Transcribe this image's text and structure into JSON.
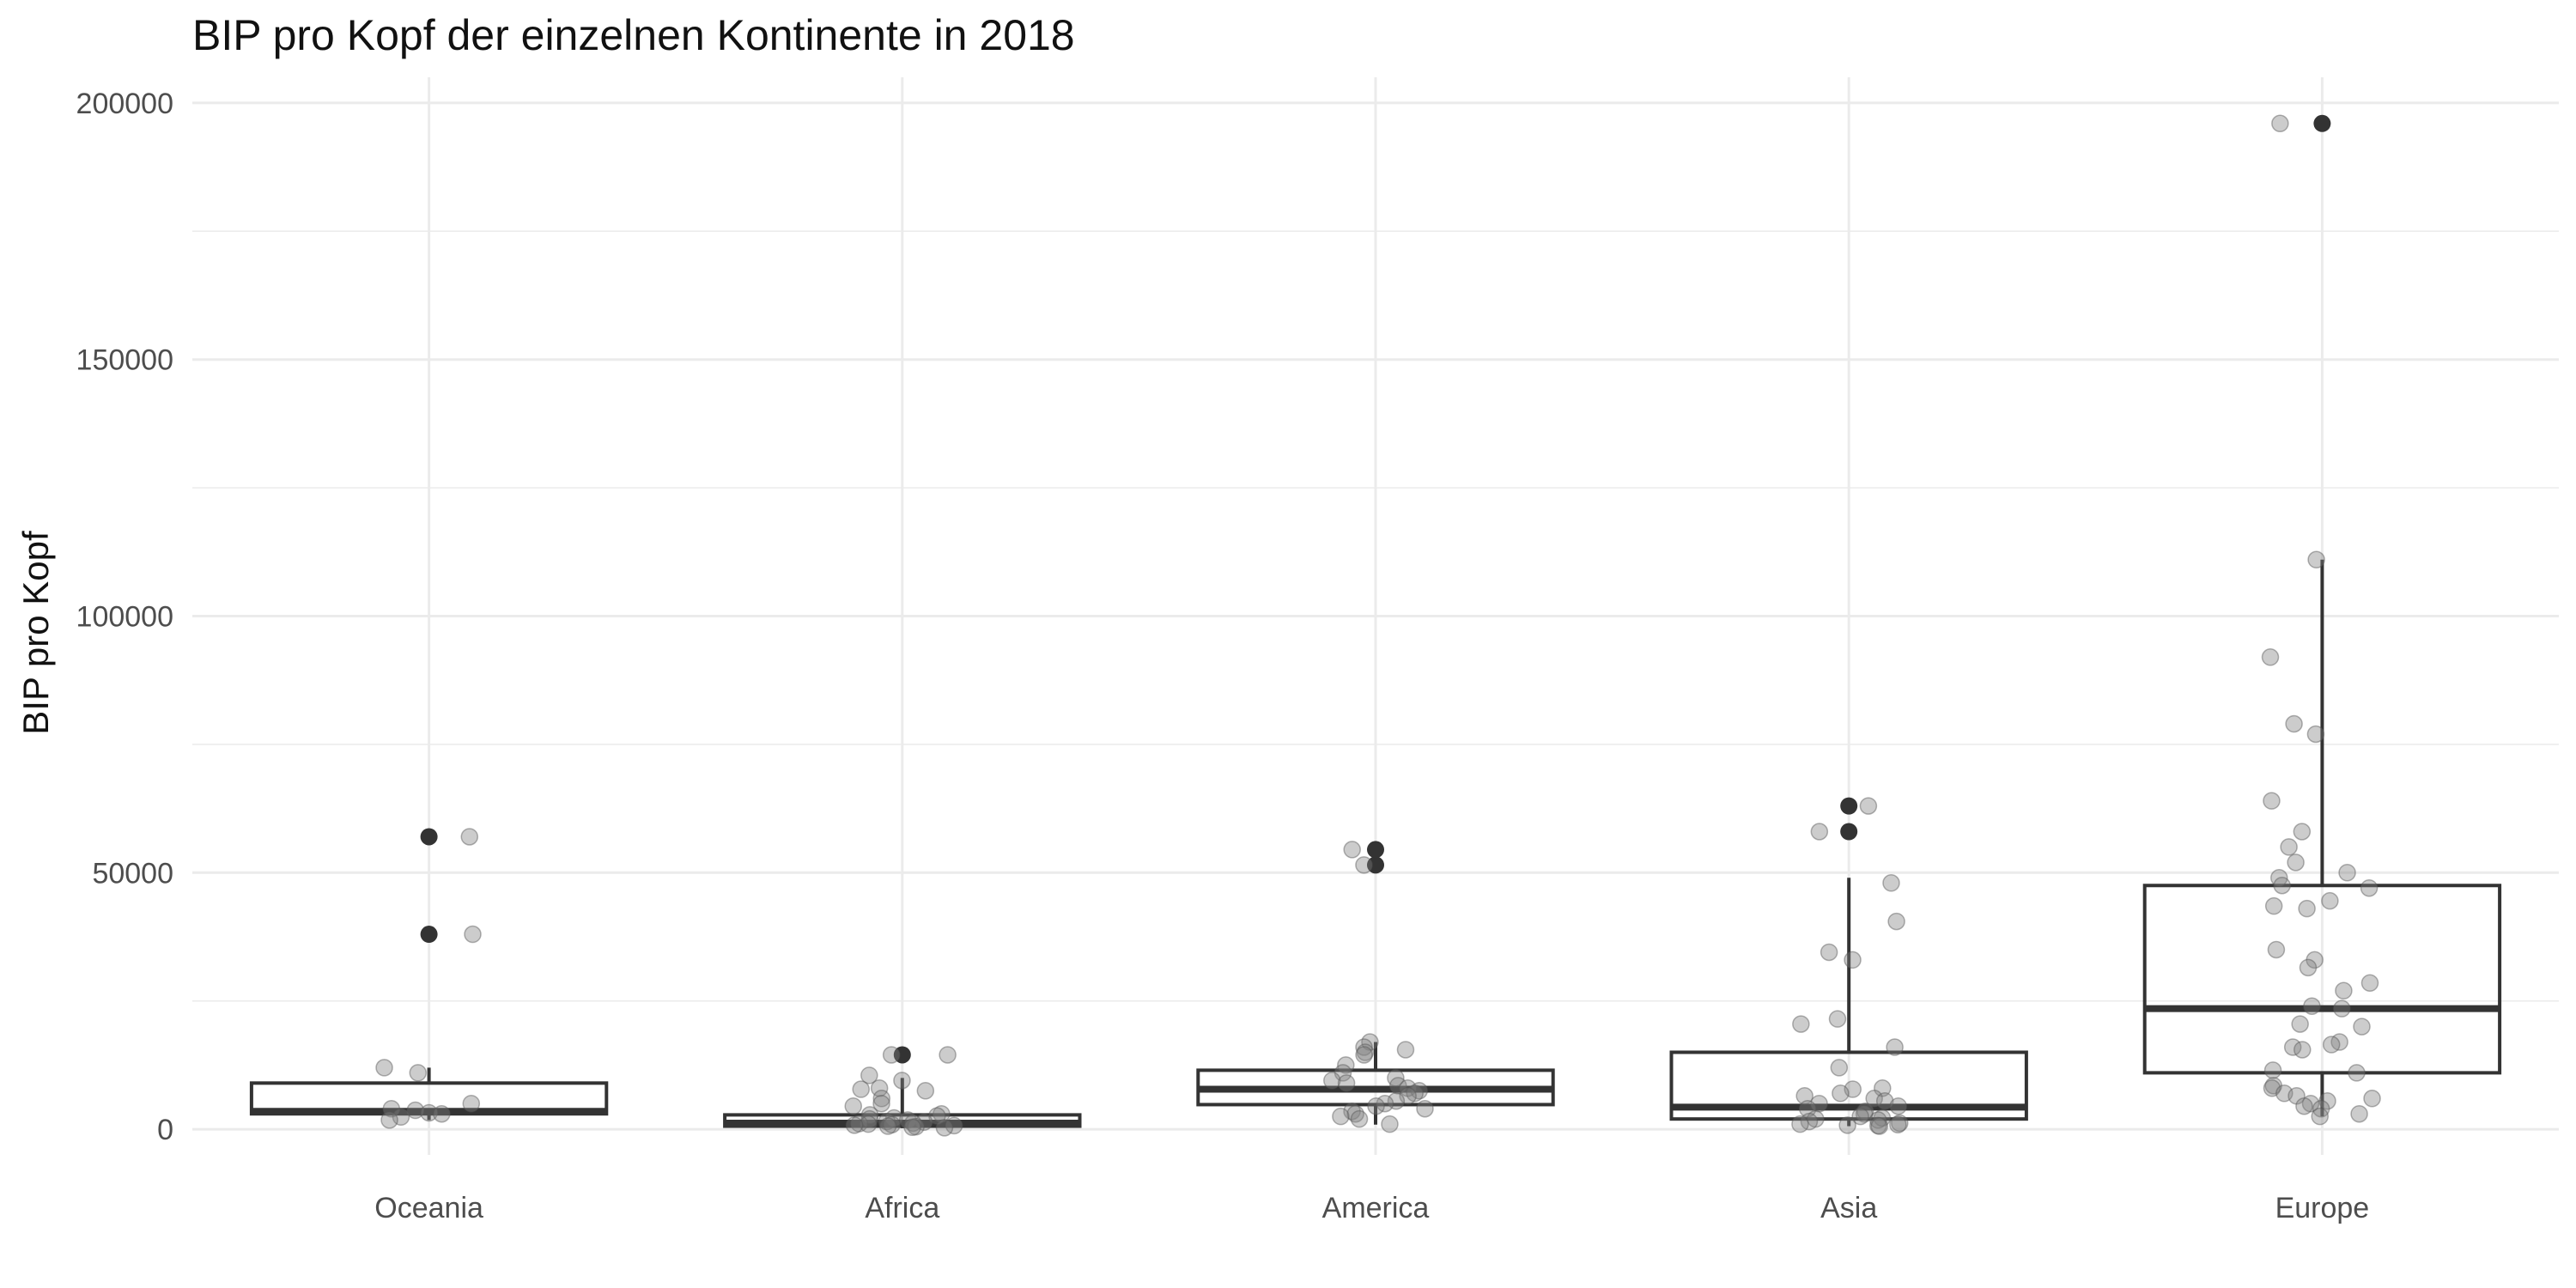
{
  "chart_data": {
    "type": "box",
    "title": "BIP pro Kopf der einzelnen Kontinente in 2018",
    "xlabel": "",
    "ylabel": "BIP pro Kopf",
    "ylim": [
      -5000,
      205000
    ],
    "yticks": [
      0,
      50000,
      100000,
      150000,
      200000
    ],
    "ytick_labels": [
      "0",
      "50000",
      "100000",
      "150000",
      "200000"
    ],
    "grid": true,
    "categories": [
      "Oceania",
      "Africa",
      "America",
      "Asia",
      "Europe"
    ],
    "boxes": [
      {
        "category": "Oceania",
        "q1": 3000,
        "median": 3500,
        "q3": 9000,
        "whisker_low": 1800,
        "whisker_high": 12000,
        "outliers": [
          38000,
          57000
        ]
      },
      {
        "category": "Africa",
        "q1": 600,
        "median": 1200,
        "q3": 2800,
        "whisker_low": 200,
        "whisker_high": 10000,
        "outliers": [
          14500
        ]
      },
      {
        "category": "America",
        "q1": 4800,
        "median": 7800,
        "q3": 11500,
        "whisker_low": 900,
        "whisker_high": 17000,
        "outliers": [
          51500,
          54500
        ]
      },
      {
        "category": "Asia",
        "q1": 2000,
        "median": 4300,
        "q3": 15000,
        "whisker_low": 600,
        "whisker_high": 49000,
        "outliers": [
          58000,
          63000
        ]
      },
      {
        "category": "Europe",
        "q1": 11000,
        "median": 23500,
        "q3": 47500,
        "whisker_low": 2500,
        "whisker_high": 111000,
        "outliers": [
          196000
        ]
      }
    ],
    "points": [
      {
        "category": "Oceania",
        "values": [
          57000,
          38000,
          12000,
          11000,
          5000,
          4000,
          3700,
          3200,
          3000,
          2400,
          1800
        ]
      },
      {
        "category": "Africa",
        "values": [
          14500,
          14500,
          10500,
          9500,
          8000,
          7800,
          7500,
          6000,
          5000,
          4500,
          3000,
          2800,
          2600,
          2200,
          2000,
          1800,
          1500,
          1400,
          1200,
          1100,
          1000,
          900,
          800,
          700,
          600,
          500,
          400,
          300
        ]
      },
      {
        "category": "America",
        "values": [
          54500,
          51500,
          17000,
          16000,
          15500,
          15000,
          14500,
          12500,
          11000,
          10000,
          9500,
          9000,
          8500,
          8000,
          7500,
          7000,
          6500,
          5500,
          5000,
          4500,
          4000,
          3500,
          3000,
          2500,
          2000,
          1000
        ]
      },
      {
        "category": "Asia",
        "values": [
          63000,
          58000,
          48000,
          40500,
          34500,
          33000,
          21500,
          20500,
          16000,
          12000,
          8000,
          7800,
          7000,
          6500,
          6000,
          5500,
          5000,
          4500,
          4000,
          3500,
          3000,
          2500,
          2200,
          2000,
          1800,
          1500,
          1200,
          1000,
          900,
          800,
          700,
          600
        ]
      },
      {
        "category": "Europe",
        "values": [
          196000,
          111000,
          92000,
          79000,
          77000,
          64000,
          58000,
          55000,
          52000,
          50000,
          49000,
          47500,
          47000,
          44500,
          43500,
          43000,
          35000,
          33000,
          31500,
          28500,
          27000,
          24000,
          23500,
          20500,
          20000,
          17000,
          16500,
          16000,
          15500,
          11500,
          11000,
          8500,
          8000,
          7000,
          6500,
          6000,
          5500,
          5000,
          4500,
          4000,
          3000,
          2500
        ]
      }
    ],
    "colors": {
      "box_stroke": "#333333",
      "outlier": "#333333",
      "jitter_point": "#7f7f7f",
      "grid": "#ebebeb"
    }
  }
}
